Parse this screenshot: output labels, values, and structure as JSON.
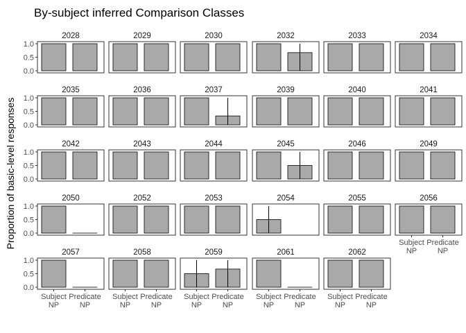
{
  "chart_data": {
    "type": "bar",
    "title": "By-subject inferred Comparison Classes",
    "ylabel": "Proportion of basic-level responses",
    "xlabel": "",
    "ylim": [
      0,
      1.0
    ],
    "yticks": [
      "0.0",
      "0.5",
      "1.0"
    ],
    "categories": [
      "Subject\nNP",
      "Predicate\nNP"
    ],
    "ncol": 6,
    "bar_color": "#A9A9A9",
    "panels": [
      {
        "subject": "2028",
        "values": [
          1.0,
          1.0
        ],
        "errors": [
          null,
          null
        ]
      },
      {
        "subject": "2029",
        "values": [
          1.0,
          1.0
        ],
        "errors": [
          null,
          null
        ]
      },
      {
        "subject": "2030",
        "values": [
          1.0,
          1.0
        ],
        "errors": [
          null,
          null
        ]
      },
      {
        "subject": "2032",
        "values": [
          1.0,
          0.67
        ],
        "errors": [
          null,
          [
            0.0,
            1.0
          ]
        ]
      },
      {
        "subject": "2033",
        "values": [
          1.0,
          1.0
        ],
        "errors": [
          null,
          null
        ]
      },
      {
        "subject": "2034",
        "values": [
          1.0,
          1.0
        ],
        "errors": [
          null,
          null
        ]
      },
      {
        "subject": "2035",
        "values": [
          1.0,
          1.0
        ],
        "errors": [
          null,
          null
        ]
      },
      {
        "subject": "2036",
        "values": [
          1.0,
          1.0
        ],
        "errors": [
          null,
          null
        ]
      },
      {
        "subject": "2037",
        "values": [
          1.0,
          0.33
        ],
        "errors": [
          null,
          [
            0.0,
            1.0
          ]
        ]
      },
      {
        "subject": "2039",
        "values": [
          1.0,
          1.0
        ],
        "errors": [
          null,
          null
        ]
      },
      {
        "subject": "2040",
        "values": [
          1.0,
          1.0
        ],
        "errors": [
          null,
          null
        ]
      },
      {
        "subject": "2041",
        "values": [
          1.0,
          1.0
        ],
        "errors": [
          null,
          null
        ]
      },
      {
        "subject": "2042",
        "values": [
          1.0,
          1.0
        ],
        "errors": [
          null,
          null
        ]
      },
      {
        "subject": "2043",
        "values": [
          1.0,
          1.0
        ],
        "errors": [
          null,
          null
        ]
      },
      {
        "subject": "2044",
        "values": [
          1.0,
          1.0
        ],
        "errors": [
          null,
          null
        ]
      },
      {
        "subject": "2045",
        "values": [
          1.0,
          0.5
        ],
        "errors": [
          null,
          [
            0.0,
            1.0
          ]
        ]
      },
      {
        "subject": "2046",
        "values": [
          1.0,
          1.0
        ],
        "errors": [
          null,
          null
        ]
      },
      {
        "subject": "2049",
        "values": [
          1.0,
          1.0
        ],
        "errors": [
          null,
          null
        ]
      },
      {
        "subject": "2050",
        "values": [
          1.0,
          0.0
        ],
        "errors": [
          null,
          null
        ]
      },
      {
        "subject": "2052",
        "values": [
          1.0,
          1.0
        ],
        "errors": [
          null,
          null
        ]
      },
      {
        "subject": "2053",
        "values": [
          1.0,
          1.0
        ],
        "errors": [
          null,
          null
        ]
      },
      {
        "subject": "2054",
        "values": [
          0.5,
          null
        ],
        "errors": [
          [
            0.0,
            1.0
          ],
          null
        ]
      },
      {
        "subject": "2055",
        "values": [
          1.0,
          1.0
        ],
        "errors": [
          null,
          null
        ]
      },
      {
        "subject": "2056",
        "values": [
          1.0,
          1.0
        ],
        "errors": [
          null,
          null
        ]
      },
      {
        "subject": "2057",
        "values": [
          1.0,
          0.0
        ],
        "errors": [
          null,
          null
        ]
      },
      {
        "subject": "2058",
        "values": [
          1.0,
          1.0
        ],
        "errors": [
          null,
          null
        ]
      },
      {
        "subject": "2059",
        "values": [
          0.5,
          0.67
        ],
        "errors": [
          [
            0.0,
            1.0
          ],
          [
            0.0,
            1.0
          ]
        ]
      },
      {
        "subject": "2061",
        "values": [
          1.0,
          0.0
        ],
        "errors": [
          null,
          null
        ]
      },
      {
        "subject": "2062",
        "values": [
          1.0,
          1.0
        ],
        "errors": [
          null,
          null
        ]
      }
    ]
  }
}
